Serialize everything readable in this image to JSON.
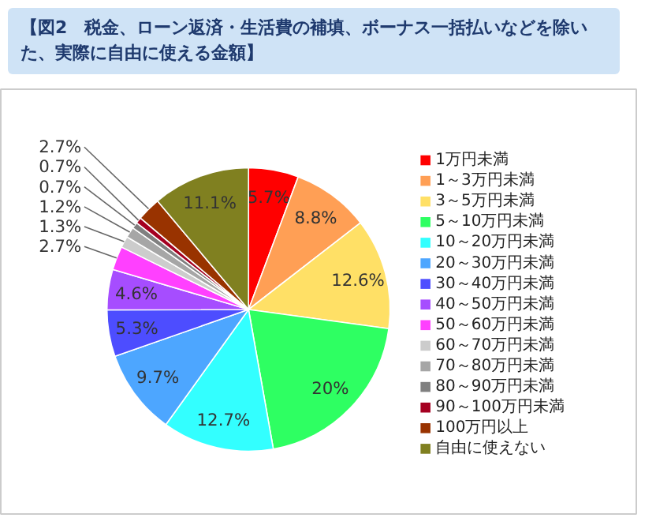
{
  "chart_data": {
    "type": "pie",
    "title": "【図2　税金、ローン返済・生活費の補填、ボーナス一括払いなどを除いた、実際に自由に使える金額】",
    "categories": [
      "1万円未満",
      "1～3万円未満",
      "3～5万円未満",
      "5～10万円未満",
      "10～20万円未満",
      "20～30万円未満",
      "30～40万円未満",
      "40～50万円未満",
      "50～60万円未満",
      "60～70万円未満",
      "70～80万円未満",
      "80～90万円未満",
      "90～100万円未満",
      "100万円以上",
      "自由に使えない"
    ],
    "values": [
      5.7,
      8.8,
      12.6,
      20,
      12.7,
      9.7,
      5.3,
      4.6,
      2.7,
      1.3,
      1.2,
      0.7,
      0.7,
      2.7,
      11.1
    ],
    "value_labels": [
      "5.7%",
      "8.8%",
      "12.6%",
      "20%",
      "12.7%",
      "9.7%",
      "5.3%",
      "4.6%",
      "2.7%",
      "1.3%",
      "1.2%",
      "0.7%",
      "0.7%",
      "2.7%",
      "11.1%"
    ],
    "colors": [
      "#ff0000",
      "#ff9f55",
      "#ffe066",
      "#2eff62",
      "#33ffff",
      "#4da6ff",
      "#4d4dff",
      "#a64dff",
      "#ff40ff",
      "#cccccc",
      "#a6a6a6",
      "#808080",
      "#a50021",
      "#993300",
      "#808020"
    ],
    "legend": "right"
  }
}
